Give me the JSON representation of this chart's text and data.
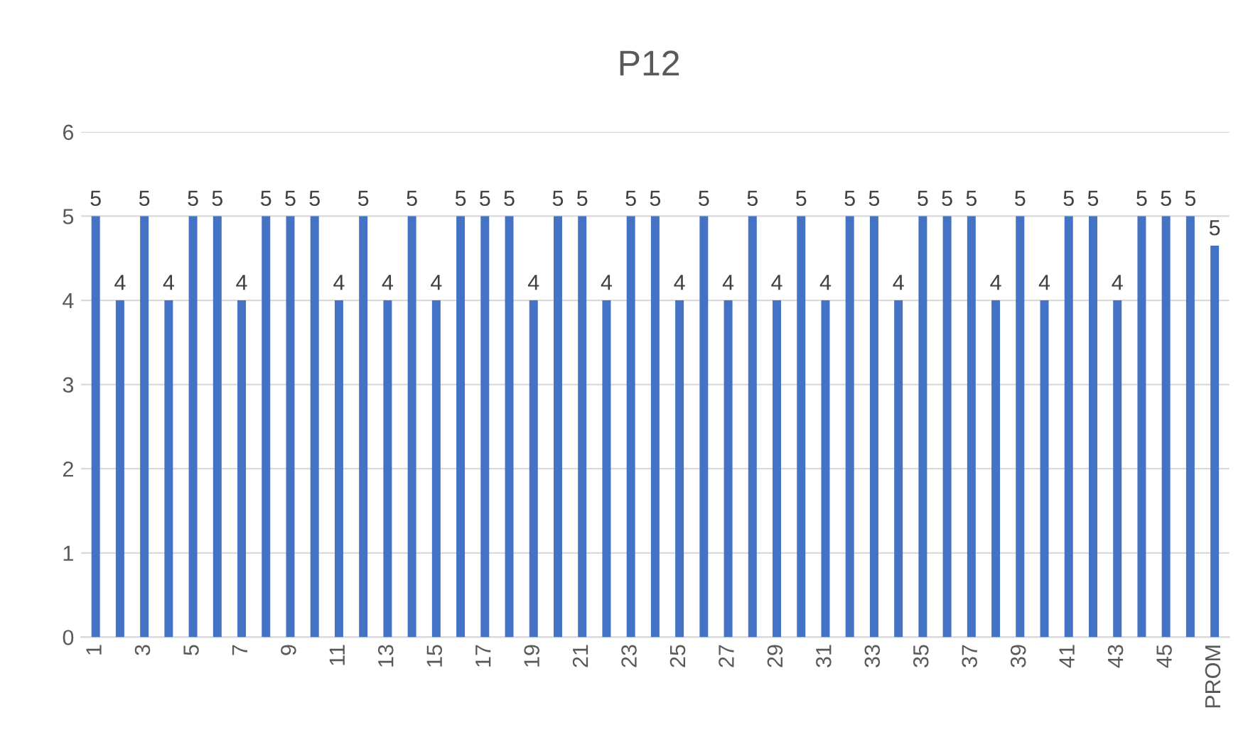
{
  "chart_data": {
    "type": "bar",
    "title": "P12",
    "categories": [
      "1",
      null,
      "3",
      null,
      "5",
      null,
      "7",
      null,
      "9",
      null,
      "11",
      null,
      "13",
      null,
      "15",
      null,
      "17",
      null,
      "19",
      null,
      "21",
      null,
      "23",
      null,
      "25",
      null,
      "27",
      null,
      "29",
      null,
      "31",
      null,
      "33",
      null,
      "35",
      null,
      "37",
      null,
      "39",
      null,
      "41",
      null,
      "43",
      null,
      "45",
      null,
      "PROM"
    ],
    "values": [
      5,
      4,
      5,
      4,
      5,
      5,
      4,
      5,
      5,
      5,
      4,
      5,
      4,
      5,
      4,
      5,
      5,
      5,
      4,
      5,
      5,
      4,
      5,
      5,
      4,
      5,
      4,
      5,
      4,
      5,
      4,
      5,
      5,
      4,
      5,
      5,
      5,
      4,
      5,
      4,
      5,
      5,
      4,
      5,
      5,
      5,
      4.65
    ],
    "value_labels": [
      "5",
      "4",
      "5",
      "4",
      "5",
      "5",
      "4",
      "5",
      "5",
      "5",
      "4",
      "5",
      "4",
      "5",
      "4",
      "5",
      "5",
      "5",
      "4",
      "5",
      "5",
      "4",
      "5",
      "5",
      "4",
      "5",
      "4",
      "5",
      "4",
      "5",
      "4",
      "5",
      "5",
      "4",
      "5",
      "5",
      "5",
      "4",
      "5",
      "4",
      "5",
      "5",
      "4",
      "5",
      "5",
      "5",
      "5"
    ],
    "color": "#4472c4",
    "ylim": [
      0,
      6
    ],
    "yticks": [
      0,
      1,
      2,
      3,
      4,
      5,
      6
    ],
    "grid": "y",
    "legend": false
  }
}
